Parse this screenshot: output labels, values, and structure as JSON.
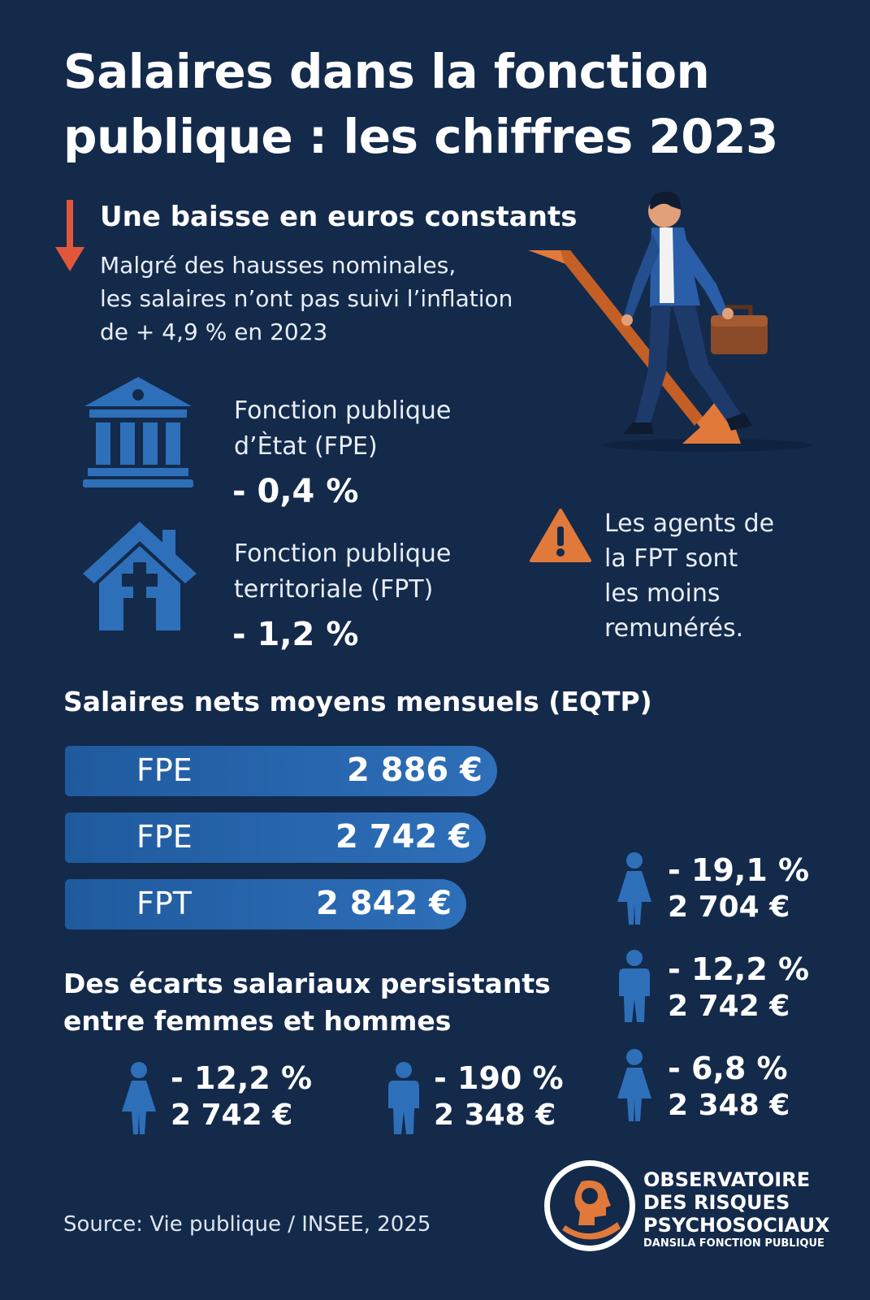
{
  "title": {
    "line1": "Salaires dans la fonction",
    "line2": "publique : les chiffres 2023"
  },
  "decline": {
    "heading": "Une baisse en euros constants",
    "line1": "Malgré des hausses nominales,",
    "line2": "les salaires n’ont pas suivi l’inflation",
    "line3": "de + 4,9 % en 2023"
  },
  "fpe": {
    "label1": "Fonction publique",
    "label2": "d’Ètat (FPE)",
    "change": "- 0,4 %"
  },
  "fpt": {
    "label1": "Fonction publique",
    "label2": "territoriale (FPT)",
    "change": "- 1,2 %"
  },
  "warning": {
    "line1": "Les agents de",
    "line2": "la FPT sont",
    "line3": "les moins",
    "line4": "remunérés."
  },
  "salaries": {
    "heading": "Salaires nets moyens mensuels (EQTP)",
    "bars": [
      {
        "label": "FPE",
        "value": "2 886 €"
      },
      {
        "label": "FPE",
        "value": "2 742 €"
      },
      {
        "label": "FPT",
        "value": "2 842 €"
      }
    ]
  },
  "gap": {
    "line1": "Des écarts salariaux persistants",
    "line2": "entre femmes et hommes",
    "bottom": [
      {
        "pct": "- 12,2 %",
        "value": "2 742 €"
      },
      {
        "pct": "- 190 %",
        "value": "2 348 €"
      }
    ],
    "right": [
      {
        "pct": "- 19,1 %",
        "value": "2 704 €"
      },
      {
        "pct": "- 12,2 %",
        "value": "2 742 €"
      },
      {
        "pct": "- 6,8 %",
        "value": "2 348 €"
      }
    ]
  },
  "source": "Source: Vie publique / INSEE, 2025",
  "logo": {
    "line1": "OBSERVATOIRE",
    "line2": "DES RISQUES",
    "line3": "PSYCHOSOCIAUX",
    "line4": "DANSILA FONCTION PUBLIQUE"
  },
  "colors": {
    "background": "#142a4b",
    "accent_orange": "#e0793a",
    "icon_blue": "#2e6fb9",
    "arrow_red": "#e0573a"
  },
  "icons": [
    "down-arrow-icon",
    "bank-building-icon",
    "house-plus-icon",
    "warning-icon",
    "female-person-icon",
    "male-person-icon",
    "head-heart-logo"
  ]
}
